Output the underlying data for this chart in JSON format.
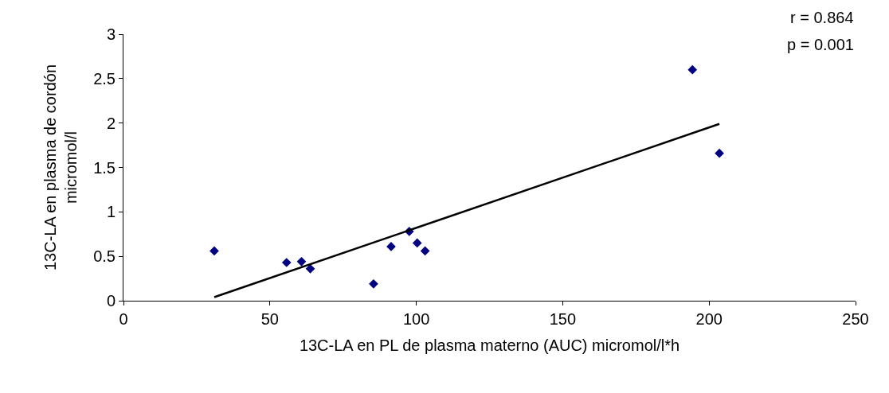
{
  "chart_data": {
    "type": "scatter",
    "xlabel": "13C-LA en PL de plasma materno (AUC) micromol/l*h",
    "ylabel": "13C-LA en plasma de cordón\nmicromol/l",
    "series": [
      {
        "color": "#000080",
        "marker": "diamond",
        "x": [
          31,
          55.7,
          60.8,
          63.8,
          85.4,
          91.4,
          97.6,
          100.3,
          103,
          194.3,
          203.5
        ],
        "values": [
          0.56,
          0.43,
          0.44,
          0.36,
          0.19,
          0.61,
          0.78,
          0.65,
          0.56,
          2.6,
          1.66
        ]
      },
      {
        "type": "line",
        "color": "#000000",
        "marker": "none",
        "x": [
          31,
          203.5
        ],
        "values": [
          0.04,
          1.99
        ]
      }
    ],
    "xlim": [
      0,
      250
    ],
    "xticks": [
      0,
      50,
      100,
      150,
      200,
      250
    ],
    "ylim": [
      0,
      3
    ],
    "yticks": [
      0,
      0.5,
      1,
      1.5,
      2,
      2.5,
      3
    ],
    "legend": false,
    "annotations": [
      "r = 0.864",
      "p = 0.001"
    ]
  }
}
